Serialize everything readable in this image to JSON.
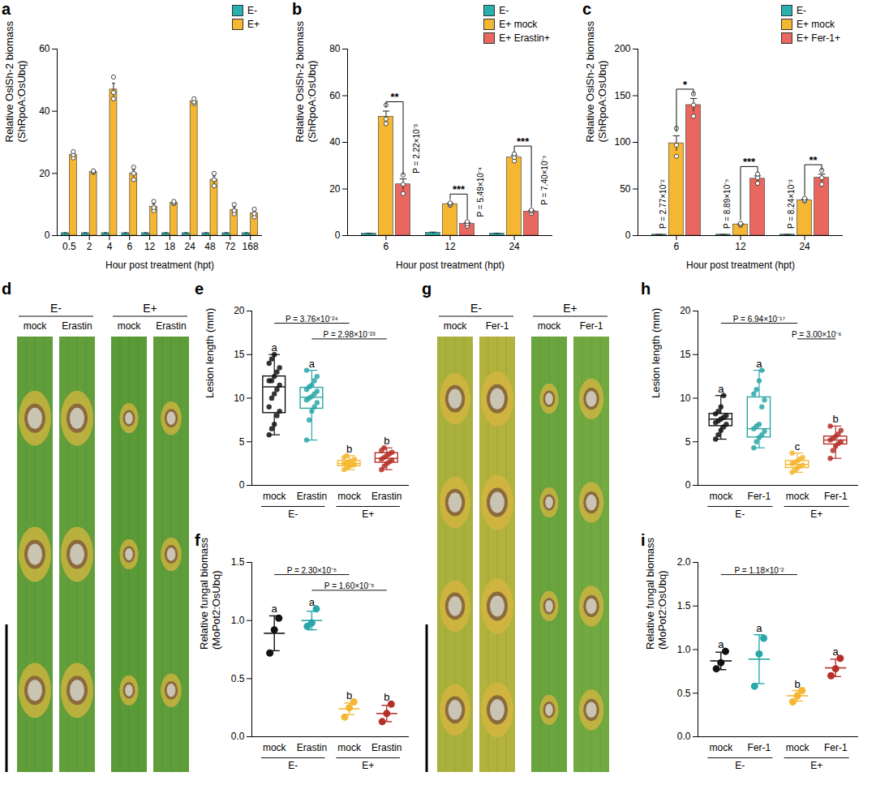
{
  "chart_data": [
    {
      "panel": "a",
      "type": "bar",
      "categories": [
        "0.5",
        "2",
        "4",
        "6",
        "12",
        "18",
        "24",
        "48",
        "72",
        "168"
      ],
      "xlabel": "Hour post treatment (hpt)",
      "ylabel": [
        "Relative OsiSh-2 biomass",
        "(ShRpoA:OsUbq)"
      ],
      "ylim": [
        0,
        60
      ],
      "yticks": [
        0,
        20,
        40,
        60
      ],
      "legend": "top-right",
      "series": [
        {
          "name": "E-",
          "color": "#2ab0ae",
          "values": [
            0.8,
            0.8,
            0.8,
            0.8,
            0.8,
            0.8,
            0.8,
            0.8,
            0.8,
            0.8
          ],
          "errors": [
            0.1,
            0.1,
            0.1,
            0.1,
            0.1,
            0.1,
            0.1,
            0.1,
            0.1,
            0.1
          ]
        },
        {
          "name": "E+",
          "color": "#f5b731",
          "values": [
            26,
            20.5,
            47,
            20,
            9.3,
            10.6,
            43.2,
            18,
            8.3,
            7.2
          ],
          "errors": [
            0.6,
            0.2,
            2,
            1.2,
            0.9,
            0.2,
            0.4,
            1.2,
            0.9,
            0.7
          ],
          "points": [
            [
              25,
              26,
              27
            ],
            [
              20.3,
              20.5,
              20.8
            ],
            [
              44,
              46,
              51
            ],
            [
              18,
              20,
              22
            ],
            [
              8,
              9,
              11
            ],
            [
              10.3,
              10.5,
              11
            ],
            [
              42.5,
              43,
              44
            ],
            [
              16,
              18,
              20
            ],
            [
              7,
              8,
              10
            ],
            [
              6,
              7,
              8.5
            ]
          ]
        }
      ]
    },
    {
      "panel": "b",
      "type": "bar",
      "categories": [
        "6",
        "12",
        "24"
      ],
      "xlabel": "Hour post treatment (hpt)",
      "ylabel": [
        "Relative OsiSh-2 biomass",
        "(ShRpoA:OsUbq)"
      ],
      "ylim": [
        0,
        80
      ],
      "yticks": [
        0,
        20,
        40,
        60,
        80
      ],
      "legend": "top-right",
      "series": [
        {
          "name": "E-",
          "color": "#2ab0ae",
          "values": [
            0.8,
            1.2,
            0.8
          ],
          "errors": [
            0.2,
            0.3,
            0.2
          ]
        },
        {
          "name": "E+ mock",
          "color": "#f5b731",
          "values": [
            51,
            13.5,
            33.5
          ],
          "errors": [
            2.4,
            0.3,
            0.9
          ],
          "points": [
            [
              48,
              50,
              56
            ],
            [
              13,
              13.5,
              14
            ],
            [
              32,
              33.5,
              35
            ]
          ]
        },
        {
          "name": "E+ Erastin+",
          "color": "#e8675e",
          "values": [
            22,
            5,
            10.3
          ],
          "errors": [
            2.3,
            0.6,
            0.4
          ],
          "points": [
            [
              18,
              22,
              26
            ],
            [
              4,
              5,
              6
            ],
            [
              9.5,
              10.5,
              11
            ]
          ]
        }
      ],
      "annotations": [
        {
          "category": "6",
          "stars": "**",
          "p": "P = 2.22×10⁻³"
        },
        {
          "category": "12",
          "stars": "***",
          "p": "P = 5.49×10⁻⁴"
        },
        {
          "category": "24",
          "stars": "***",
          "p": "P = 7.40×10⁻⁵"
        }
      ]
    },
    {
      "panel": "c",
      "type": "bar",
      "categories": [
        "6",
        "12",
        "24"
      ],
      "xlabel": "Hour post treatment (hpt)",
      "ylabel": [
        "Relative OsiSh-2 biomass",
        "(ShRpoA:OsUbq)"
      ],
      "ylim": [
        0,
        200
      ],
      "yticks": [
        0,
        50,
        100,
        150,
        200
      ],
      "legend": "top-right",
      "series": [
        {
          "name": "E-",
          "color": "#2ab0ae",
          "values": [
            1,
            1,
            1
          ],
          "errors": [
            0.3,
            0.3,
            0.3
          ]
        },
        {
          "name": "E+ mock",
          "color": "#f5b731",
          "values": [
            99,
            12,
            38
          ],
          "errors": [
            8,
            0.6,
            1
          ],
          "points": [
            [
              85,
              97,
              115
            ],
            [
              11,
              12,
              13
            ],
            [
              37,
              38,
              40
            ]
          ]
        },
        {
          "name": "E+ Fer-1+",
          "color": "#e8675e",
          "values": [
            140,
            61,
            62
          ],
          "errors": [
            7,
            3,
            4
          ],
          "points": [
            [
              128,
              140,
              152
            ],
            [
              56,
              62,
              66
            ],
            [
              55,
              62,
              70
            ]
          ]
        }
      ],
      "annotations": [
        {
          "category": "6",
          "stars": "*",
          "p": "P = 2.77×10⁻²"
        },
        {
          "category": "12",
          "stars": "***",
          "p": "P = 8.89×10⁻⁵"
        },
        {
          "category": "24",
          "stars": "**",
          "p": "P = 8.24×10⁻³"
        }
      ]
    },
    {
      "panel": "e",
      "type": "box",
      "categories": [
        "mock",
        "Erastin",
        "mock",
        "Erastin"
      ],
      "group_of": [
        "E-",
        "E-",
        "E+",
        "E+"
      ],
      "ylabel": "Lesion length (mm)",
      "ylim": [
        0,
        20
      ],
      "yticks": [
        0,
        5,
        10,
        15,
        20
      ],
      "colors": [
        "#111111",
        "#2aa7a8",
        "#f5b731",
        "#b5302a"
      ],
      "points": [
        [
          5.8,
          6.5,
          7,
          8,
          8.5,
          9,
          10,
          10.5,
          11,
          11.5,
          12,
          12,
          12.5,
          13,
          13.5,
          14,
          14.5,
          15
        ],
        [
          5.2,
          7.5,
          8.5,
          9,
          9.5,
          9.8,
          10,
          10.2,
          10.5,
          10.8,
          11,
          11.3,
          11.5,
          12,
          12.5,
          13.2
        ],
        [
          1.8,
          2,
          2.2,
          2.3,
          2.4,
          2.5,
          2.6,
          2.7,
          2.8,
          3,
          3.2,
          3.4
        ],
        [
          1.8,
          2.2,
          2.5,
          2.7,
          2.9,
          3,
          3.2,
          3.4,
          3.6,
          3.8,
          4,
          4.3
        ]
      ],
      "box": [
        {
          "min": 5.8,
          "q1": 8.3,
          "median": 11.3,
          "q3": 12.5,
          "max": 15
        },
        {
          "min": 5.2,
          "q1": 8.8,
          "median": 10.1,
          "q3": 11.2,
          "max": 13.2
        },
        {
          "min": 1.8,
          "q1": 2.2,
          "median": 2.5,
          "q3": 2.8,
          "max": 3.4
        },
        {
          "min": 1.8,
          "q1": 2.6,
          "median": 3.1,
          "q3": 3.7,
          "max": 4.3
        }
      ],
      "letters": [
        "a",
        "a",
        "b",
        "b"
      ],
      "comparisons": [
        {
          "between": [
            0,
            2
          ],
          "label": "P = 3.76×10⁻²⁴"
        },
        {
          "between": [
            1,
            3
          ],
          "label": "P = 2.98×10⁻²³"
        }
      ]
    },
    {
      "panel": "f",
      "type": "scatter",
      "categories": [
        "mock",
        "Erastin",
        "mock",
        "Erastin"
      ],
      "group_of": [
        "E-",
        "E-",
        "E+",
        "E+"
      ],
      "ylabel": [
        "Relative fungal biomass",
        "(MoPot2:OsUbq)"
      ],
      "ylim": [
        0,
        1.5
      ],
      "yticks": [
        {
          "value": 0,
          "label": "0.0"
        },
        0.5,
        {
          "value": 1,
          "label": "1.0"
        },
        1.5
      ],
      "colors": [
        "#111111",
        "#2aa7a8",
        "#f5b731",
        "#b5302a"
      ],
      "points": [
        [
          0.72,
          0.92,
          1.02
        ],
        [
          0.95,
          0.98,
          1.1
        ],
        [
          0.17,
          0.25,
          0.3
        ],
        [
          0.13,
          0.2,
          0.28
        ]
      ],
      "values": [
        0.89,
        1.0,
        0.24,
        0.2
      ],
      "errors": [
        0.15,
        0.08,
        0.05,
        0.07
      ],
      "letters": [
        "a",
        "a",
        "b",
        "b"
      ],
      "comparisons": [
        {
          "between": [
            0,
            2
          ],
          "label": "P = 2.30×10⁻⁵"
        },
        {
          "between": [
            1,
            3
          ],
          "label": "P = 1.60×10⁻⁵"
        }
      ]
    },
    {
      "panel": "h",
      "type": "box",
      "categories": [
        "mock",
        "Fer-1",
        "mock",
        "Fer-1"
      ],
      "group_of": [
        "E-",
        "E-",
        "E+",
        "E+"
      ],
      "ylabel": "Lesion length (mm)",
      "ylim": [
        0,
        20
      ],
      "yticks": [
        0,
        5,
        10,
        15,
        20
      ],
      "colors": [
        "#111111",
        "#2aa7a8",
        "#f5b731",
        "#b5302a"
      ],
      "points": [
        [
          5.3,
          5.8,
          6.3,
          6.7,
          7,
          7.2,
          7.4,
          7.6,
          7.8,
          8,
          8.2,
          8.5,
          9,
          10.3
        ],
        [
          4.3,
          5,
          5.5,
          5.8,
          6.2,
          6.5,
          6.8,
          7,
          9,
          9.8,
          10.5,
          11,
          12,
          13.2
        ],
        [
          1.5,
          1.8,
          2,
          2.2,
          2.3,
          2.5,
          2.6,
          2.8,
          3,
          3.2,
          3.7
        ],
        [
          3.1,
          4,
          4.5,
          4.8,
          5,
          5.2,
          5.4,
          5.6,
          5.9,
          6.3,
          6.8
        ]
      ],
      "box": [
        {
          "min": 5.3,
          "q1": 6.8,
          "median": 7.6,
          "q3": 8.2,
          "max": 10.3
        },
        {
          "min": 4.3,
          "q1": 5.5,
          "median": 6.5,
          "q3": 10.1,
          "max": 13.2
        },
        {
          "min": 1.5,
          "q1": 2,
          "median": 2.4,
          "q3": 2.8,
          "max": 3.7
        },
        {
          "min": 3.1,
          "q1": 4.7,
          "median": 5.2,
          "q3": 5.6,
          "max": 6.8
        }
      ],
      "letters": [
        "a",
        "a",
        "c",
        "b"
      ],
      "comparisons": [
        {
          "between": [
            0,
            2
          ],
          "label": "P = 6.94×10⁻¹⁷"
        },
        {
          "between": [
            2,
            3
          ],
          "label": "P = 3.00×10⁻⁶"
        }
      ]
    },
    {
      "panel": "i",
      "type": "scatter",
      "categories": [
        "mock",
        "Fer-1",
        "mock",
        "Fer-1"
      ],
      "group_of": [
        "E-",
        "E-",
        "E+",
        "E+"
      ],
      "ylabel": [
        "Relative fungal biomass",
        "(MoPot2:OsUbq)"
      ],
      "ylim": [
        0,
        2
      ],
      "yticks": [
        {
          "value": 0,
          "label": "0.0"
        },
        0.5,
        {
          "value": 1,
          "label": "1.0"
        },
        1.5,
        {
          "value": 2,
          "label": "2.0"
        }
      ],
      "colors": [
        "#111111",
        "#2aa7a8",
        "#f5b731",
        "#b5302a"
      ],
      "points": [
        [
          0.78,
          0.85,
          0.98
        ],
        [
          0.58,
          0.95,
          1.13
        ],
        [
          0.4,
          0.47,
          0.53
        ],
        [
          0.7,
          0.78,
          0.9
        ]
      ],
      "values": [
        0.87,
        0.89,
        0.47,
        0.79
      ],
      "errors": [
        0.1,
        0.28,
        0.06,
        0.1
      ],
      "letters": [
        "a",
        "a",
        "b",
        "a"
      ],
      "comparisons": [
        {
          "between": [
            0,
            2
          ],
          "label": "P = 1.18×10⁻²"
        }
      ]
    }
  ],
  "photos": [
    {
      "panel": "d",
      "groups": [
        {
          "label": "E-",
          "treatments": [
            "mock",
            "Erastin"
          ]
        },
        {
          "label": "E+",
          "treatments": [
            "mock",
            "Erastin"
          ]
        }
      ]
    },
    {
      "panel": "g",
      "groups": [
        {
          "label": "E-",
          "treatments": [
            "mock",
            "Fer-1"
          ]
        },
        {
          "label": "E+",
          "treatments": [
            "mock",
            "Fer-1"
          ]
        }
      ]
    }
  ]
}
